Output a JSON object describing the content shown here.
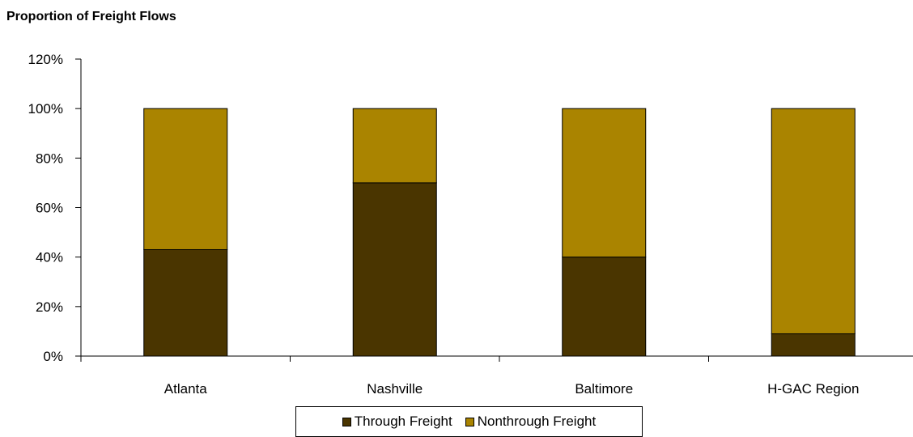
{
  "chart_data": {
    "type": "bar",
    "stacked": true,
    "title": "Proportion of Freight Flows",
    "xlabel": "",
    "ylabel": "",
    "categories": [
      "Atlanta",
      "Nashville",
      "Baltimore",
      "H-GAC Region"
    ],
    "series": [
      {
        "name": "Through Freight",
        "values": [
          43,
          70,
          40,
          9
        ],
        "color": "#4a3500"
      },
      {
        "name": "Nonthrough Freight",
        "values": [
          57,
          30,
          60,
          91
        ],
        "color": "#aa8400"
      }
    ],
    "ylim": [
      0,
      120
    ],
    "yticks": [
      0,
      20,
      40,
      60,
      80,
      100,
      120
    ],
    "ytick_labels": [
      "0%",
      "20%",
      "40%",
      "60%",
      "80%",
      "100%",
      "120%"
    ],
    "grid": false,
    "legend_position": "bottom"
  }
}
